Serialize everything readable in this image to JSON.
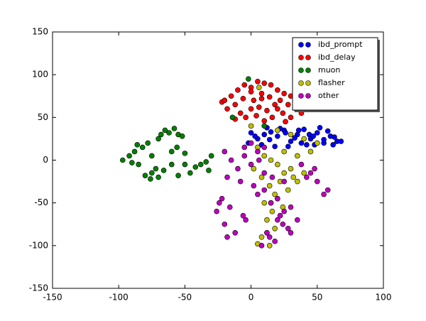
{
  "chart_data": {
    "type": "scatter",
    "xlim": [
      -150,
      100
    ],
    "ylim": [
      -150,
      150
    ],
    "xticks": [
      -150,
      -100,
      -50,
      0,
      50,
      100
    ],
    "yticks": [
      -150,
      -100,
      -50,
      0,
      50,
      100,
      150
    ],
    "legend": "upper right",
    "series": [
      {
        "name": "ibd_prompt",
        "color": "#0000ff",
        "x": [
          -2,
          5,
          10,
          15,
          20,
          25,
          30,
          35,
          40,
          45,
          50,
          55,
          60,
          65,
          68,
          0,
          8,
          14,
          22,
          28,
          33,
          38,
          44,
          48,
          52,
          58,
          63,
          3,
          12,
          18,
          26,
          36,
          42,
          47,
          55,
          62
        ],
        "values": [
          20,
          25,
          30,
          33,
          28,
          35,
          22,
          30,
          36,
          25,
          32,
          20,
          28,
          22,
          22,
          32,
          18,
          24,
          37,
          16,
          26,
          20,
          30,
          18,
          38,
          34,
          27,
          28,
          38,
          16,
          32,
          35,
          18,
          28,
          24,
          18
        ]
      },
      {
        "name": "ibd_delay",
        "color": "#ff0000",
        "x": [
          -22,
          -15,
          -10,
          -5,
          0,
          5,
          10,
          15,
          20,
          25,
          30,
          35,
          38,
          -18,
          -12,
          -6,
          2,
          8,
          14,
          22,
          28,
          34,
          -8,
          0,
          6,
          12,
          18,
          24,
          30,
          -12,
          -4,
          4,
          10,
          16,
          26,
          0,
          8,
          20,
          -20,
          38
        ],
        "values": [
          68,
          75,
          82,
          88,
          85,
          92,
          90,
          88,
          82,
          78,
          75,
          72,
          62,
          60,
          65,
          72,
          70,
          78,
          74,
          70,
          65,
          60,
          55,
          60,
          62,
          58,
          65,
          55,
          50,
          48,
          50,
          52,
          46,
          50,
          45,
          80,
          72,
          60,
          70,
          55
        ]
      },
      {
        "name": "muon",
        "color": "#008000",
        "x": [
          -97,
          -92,
          -88,
          -85,
          -82,
          -78,
          -75,
          -72,
          -90,
          -86,
          -80,
          -76,
          -70,
          -68,
          -65,
          -62,
          -58,
          -55,
          -52,
          -75,
          -70,
          -66,
          -60,
          -55,
          -50,
          -46,
          -42,
          -38,
          -34,
          -30,
          -32,
          -60,
          -56,
          -50,
          -2,
          -14,
          10
        ],
        "values": [
          0,
          5,
          10,
          -5,
          15,
          20,
          5,
          -10,
          -3,
          18,
          -18,
          -22,
          25,
          30,
          35,
          32,
          37,
          30,
          28,
          -15,
          -20,
          -12,
          -5,
          -18,
          -5,
          -15,
          -8,
          -5,
          -2,
          5,
          -12,
          10,
          15,
          8,
          95,
          50,
          40
        ]
      },
      {
        "name": "flasher",
        "color": "#bfbf00",
        "x": [
          5,
          10,
          15,
          20,
          25,
          30,
          35,
          40,
          45,
          8,
          14,
          18,
          22,
          28,
          32,
          10,
          16,
          20,
          24,
          12,
          18,
          22,
          8,
          14,
          5,
          12,
          20,
          30,
          40,
          50,
          0,
          6,
          2,
          25,
          35
        ],
        "values": [
          15,
          5,
          0,
          -5,
          10,
          -10,
          5,
          -15,
          10,
          -20,
          -30,
          -40,
          -25,
          -35,
          -20,
          -50,
          -60,
          -45,
          -55,
          -70,
          -80,
          -65,
          -90,
          -100,
          -98,
          -85,
          35,
          30,
          25,
          20,
          40,
          85,
          -10,
          -15,
          -25
        ]
      },
      {
        "name": "other",
        "color": "#bf00bf",
        "x": [
          -20,
          -15,
          -10,
          -5,
          0,
          5,
          10,
          -18,
          -8,
          2,
          -22,
          -26,
          -20,
          -12,
          -4,
          -24,
          -16,
          -6,
          -18,
          5,
          10,
          15,
          20,
          25,
          30,
          35,
          12,
          18,
          24,
          28,
          38,
          45,
          50,
          55,
          58,
          42,
          48,
          8,
          14,
          20,
          0,
          -5,
          6,
          10,
          16,
          25,
          30,
          22,
          15
        ],
        "values": [
          10,
          0,
          -10,
          5,
          -5,
          10,
          15,
          -20,
          -25,
          -30,
          -45,
          -60,
          -75,
          -85,
          -70,
          -50,
          -55,
          -65,
          -90,
          -40,
          -35,
          -50,
          -45,
          -60,
          -55,
          -70,
          -85,
          -95,
          -75,
          -80,
          -5,
          -15,
          -25,
          -40,
          -35,
          -20,
          -10,
          -100,
          -90,
          -70,
          20,
          15,
          0,
          -15,
          -20,
          -25,
          -85,
          -65,
          -50
        ]
      }
    ]
  }
}
